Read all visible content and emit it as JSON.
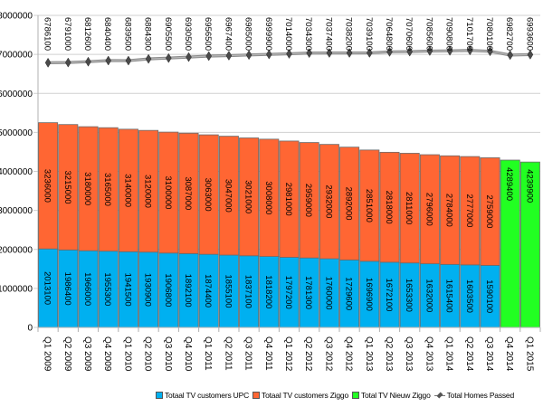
{
  "chart_data": {
    "type": "bar",
    "stacked": true,
    "title": "",
    "xlabel": "",
    "ylabel": "",
    "ylim": [
      0,
      8000000
    ],
    "yticks": [
      0,
      1000000,
      2000000,
      3000000,
      4000000,
      5000000,
      6000000,
      7000000,
      8000000
    ],
    "grid": true,
    "legend_position": "bottom-right",
    "categories": [
      "Q1 2009",
      "Q2 2009",
      "Q3 2009",
      "Q4 2009",
      "Q1 2010",
      "Q2 2010",
      "Q3 2010",
      "Q4 2010",
      "Q1 2011",
      "Q2 2011",
      "Q3 2011",
      "Q4 2011",
      "Q1 2012",
      "Q2 2012",
      "Q3 2012",
      "Q4 2012",
      "Q1 2013",
      "Q2 2013",
      "Q3 2013",
      "Q4 2013",
      "Q1 2014",
      "Q2 2014",
      "Q3 2014",
      "Q4 2014",
      "Q1 2015"
    ],
    "series": [
      {
        "name": "Totaal TV customers UPC",
        "kind": "bar",
        "color": "#00B0F0",
        "values": [
          2013100,
          1986400,
          1966000,
          1955300,
          1941500,
          1930900,
          1906800,
          1892100,
          1874400,
          1855100,
          1837100,
          1818200,
          1797200,
          1781300,
          1760000,
          1729600,
          1696900,
          1672100,
          1653300,
          1632000,
          1615400,
          1603500,
          1590100,
          null,
          null
        ]
      },
      {
        "name": "Totaal TV customers Ziggo",
        "kind": "bar",
        "color": "#FF6633",
        "values": [
          3236000,
          3215000,
          3180000,
          3165000,
          3140000,
          3120000,
          3100000,
          3087000,
          3063000,
          3047000,
          3021000,
          3008000,
          2981000,
          2959000,
          2932000,
          2892000,
          2851000,
          2818000,
          2811000,
          2796000,
          2784000,
          2777000,
          2759000,
          null,
          null
        ]
      },
      {
        "name": "Total TV Nieuw Ziggo",
        "kind": "bar",
        "color": "#22FF22",
        "values": [
          null,
          null,
          null,
          null,
          null,
          null,
          null,
          null,
          null,
          null,
          null,
          null,
          null,
          null,
          null,
          null,
          null,
          null,
          null,
          null,
          null,
          null,
          null,
          4289400,
          4239900
        ]
      },
      {
        "name": "Total Homes Passed",
        "kind": "line",
        "color": "#777777",
        "values": [
          6786100,
          6791000,
          6812600,
          6840400,
          6839500,
          6884300,
          6905500,
          6930500,
          6956500,
          6967400,
          6985000,
          6999900,
          7014000,
          7034300,
          7037400,
          7038200,
          7039100,
          7064800,
          7070600,
          7085600,
          7090800,
          7101700,
          7080100,
          6982700,
          6993600
        ]
      }
    ]
  }
}
